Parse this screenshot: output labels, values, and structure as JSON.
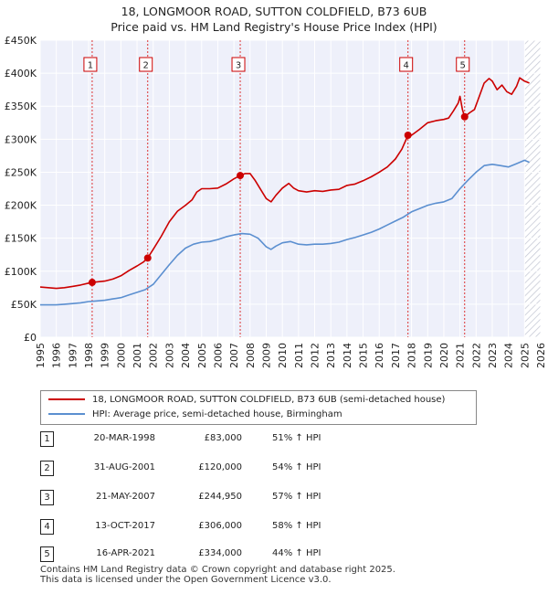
{
  "title_line1": "18, LONGMOOR ROAD, SUTTON COLDFIELD, B73 6UB",
  "title_line2": "Price paid vs. HM Land Registry's House Price Index (HPI)",
  "chart_data": {
    "type": "line",
    "title": "18, LONGMOOR ROAD, SUTTON COLDFIELD, B73 6UB — Price paid vs. HM Land Registry's House Price Index (HPI)",
    "xlabel": "",
    "ylabel": "",
    "xlim": [
      1995,
      2026
    ],
    "ylim": [
      0,
      450000
    ],
    "x_ticks": [
      1995,
      1996,
      1997,
      1998,
      1999,
      2000,
      2001,
      2002,
      2003,
      2004,
      2005,
      2006,
      2007,
      2008,
      2009,
      2010,
      2011,
      2012,
      2013,
      2014,
      2015,
      2016,
      2017,
      2018,
      2019,
      2020,
      2021,
      2022,
      2023,
      2024,
      2025,
      2026
    ],
    "y_ticks": [
      0,
      50000,
      100000,
      150000,
      200000,
      250000,
      300000,
      350000,
      400000,
      450000
    ],
    "y_tick_labels": [
      "£0",
      "£50K",
      "£100K",
      "£150K",
      "£200K",
      "£250K",
      "£300K",
      "£350K",
      "£400K",
      "£450K"
    ],
    "grid": true,
    "series": [
      {
        "name": "18, LONGMOOR ROAD, SUTTON COLDFIELD, B73 6UB (semi-detached house)",
        "color": "#cc0000",
        "points": [
          [
            1995.0,
            76000
          ],
          [
            1995.5,
            75000
          ],
          [
            1996.0,
            74000
          ],
          [
            1996.5,
            75000
          ],
          [
            1997.0,
            77000
          ],
          [
            1997.5,
            79000
          ],
          [
            1998.0,
            82000
          ],
          [
            1998.22,
            83000
          ],
          [
            1998.6,
            84000
          ],
          [
            1999.0,
            85000
          ],
          [
            1999.5,
            88000
          ],
          [
            2000.0,
            93000
          ],
          [
            2000.5,
            101000
          ],
          [
            2001.0,
            108000
          ],
          [
            2001.4,
            114000
          ],
          [
            2001.66,
            120000
          ],
          [
            2002.0,
            133000
          ],
          [
            2002.5,
            153000
          ],
          [
            2003.0,
            175000
          ],
          [
            2003.5,
            191000
          ],
          [
            2004.0,
            200000
          ],
          [
            2004.4,
            208000
          ],
          [
            2004.7,
            220000
          ],
          [
            2005.0,
            225000
          ],
          [
            2005.5,
            225000
          ],
          [
            2006.0,
            226000
          ],
          [
            2006.5,
            232000
          ],
          [
            2007.0,
            240000
          ],
          [
            2007.39,
            244950
          ],
          [
            2007.7,
            248000
          ],
          [
            2008.0,
            248000
          ],
          [
            2008.3,
            238000
          ],
          [
            2008.7,
            222000
          ],
          [
            2009.0,
            210000
          ],
          [
            2009.3,
            205000
          ],
          [
            2009.6,
            215000
          ],
          [
            2010.0,
            226000
          ],
          [
            2010.4,
            233000
          ],
          [
            2010.7,
            226000
          ],
          [
            2011.0,
            222000
          ],
          [
            2011.5,
            220000
          ],
          [
            2012.0,
            222000
          ],
          [
            2012.5,
            221000
          ],
          [
            2013.0,
            223000
          ],
          [
            2013.5,
            224000
          ],
          [
            2014.0,
            230000
          ],
          [
            2014.5,
            232000
          ],
          [
            2015.0,
            237000
          ],
          [
            2015.5,
            243000
          ],
          [
            2016.0,
            250000
          ],
          [
            2016.5,
            258000
          ],
          [
            2017.0,
            270000
          ],
          [
            2017.4,
            285000
          ],
          [
            2017.78,
            306000
          ],
          [
            2018.0,
            306000
          ],
          [
            2018.5,
            315000
          ],
          [
            2019.0,
            325000
          ],
          [
            2019.5,
            328000
          ],
          [
            2020.0,
            330000
          ],
          [
            2020.3,
            332000
          ],
          [
            2020.6,
            343000
          ],
          [
            2020.9,
            355000
          ],
          [
            2021.0,
            365000
          ],
          [
            2021.15,
            345000
          ],
          [
            2021.29,
            334000
          ],
          [
            2021.6,
            340000
          ],
          [
            2021.9,
            345000
          ],
          [
            2022.2,
            365000
          ],
          [
            2022.5,
            385000
          ],
          [
            2022.8,
            392000
          ],
          [
            2023.0,
            388000
          ],
          [
            2023.3,
            375000
          ],
          [
            2023.6,
            382000
          ],
          [
            2023.9,
            372000
          ],
          [
            2024.2,
            368000
          ],
          [
            2024.5,
            380000
          ],
          [
            2024.7,
            393000
          ],
          [
            2025.0,
            388000
          ],
          [
            2025.3,
            385000
          ]
        ]
      },
      {
        "name": "HPI: Average price, semi-detached house, Birmingham",
        "color": "#5b8fd0",
        "points": [
          [
            1995.0,
            49000
          ],
          [
            1995.5,
            49000
          ],
          [
            1996.0,
            49000
          ],
          [
            1996.5,
            50000
          ],
          [
            1997.0,
            51000
          ],
          [
            1997.5,
            52000
          ],
          [
            1998.0,
            54000
          ],
          [
            1998.5,
            55000
          ],
          [
            1999.0,
            56000
          ],
          [
            1999.5,
            58000
          ],
          [
            2000.0,
            60000
          ],
          [
            2000.5,
            64000
          ],
          [
            2001.0,
            68000
          ],
          [
            2001.5,
            72000
          ],
          [
            2002.0,
            80000
          ],
          [
            2002.5,
            95000
          ],
          [
            2003.0,
            110000
          ],
          [
            2003.5,
            124000
          ],
          [
            2004.0,
            135000
          ],
          [
            2004.5,
            141000
          ],
          [
            2005.0,
            144000
          ],
          [
            2005.5,
            145000
          ],
          [
            2006.0,
            148000
          ],
          [
            2006.5,
            152000
          ],
          [
            2007.0,
            155000
          ],
          [
            2007.5,
            157000
          ],
          [
            2008.0,
            156000
          ],
          [
            2008.5,
            150000
          ],
          [
            2009.0,
            137000
          ],
          [
            2009.3,
            133000
          ],
          [
            2009.6,
            138000
          ],
          [
            2010.0,
            143000
          ],
          [
            2010.5,
            145000
          ],
          [
            2011.0,
            141000
          ],
          [
            2011.5,
            140000
          ],
          [
            2012.0,
            141000
          ],
          [
            2012.5,
            141000
          ],
          [
            2013.0,
            142000
          ],
          [
            2013.5,
            144000
          ],
          [
            2014.0,
            148000
          ],
          [
            2014.5,
            151000
          ],
          [
            2015.0,
            155000
          ],
          [
            2015.5,
            159000
          ],
          [
            2016.0,
            164000
          ],
          [
            2016.5,
            170000
          ],
          [
            2017.0,
            176000
          ],
          [
            2017.5,
            182000
          ],
          [
            2018.0,
            190000
          ],
          [
            2018.5,
            195000
          ],
          [
            2019.0,
            200000
          ],
          [
            2019.5,
            203000
          ],
          [
            2020.0,
            205000
          ],
          [
            2020.5,
            210000
          ],
          [
            2021.0,
            225000
          ],
          [
            2021.5,
            238000
          ],
          [
            2022.0,
            250000
          ],
          [
            2022.5,
            260000
          ],
          [
            2023.0,
            262000
          ],
          [
            2023.5,
            260000
          ],
          [
            2024.0,
            258000
          ],
          [
            2024.5,
            263000
          ],
          [
            2025.0,
            268000
          ],
          [
            2025.3,
            265000
          ]
        ]
      }
    ],
    "sales": [
      {
        "label": "1",
        "x": 1998.22,
        "price": 83000
      },
      {
        "label": "2",
        "x": 2001.66,
        "price": 120000
      },
      {
        "label": "3",
        "x": 2007.39,
        "price": 244950
      },
      {
        "label": "4",
        "x": 2017.78,
        "price": 306000
      },
      {
        "label": "5",
        "x": 2021.29,
        "price": 334000
      }
    ],
    "forecast_start": 2025.0
  },
  "legend": {
    "property_label": "18, LONGMOOR ROAD, SUTTON COLDFIELD, B73 6UB (semi-detached house)",
    "hpi_label": "HPI: Average price, semi-detached house, Birmingham",
    "property_color": "#cc0000",
    "hpi_color": "#5b8fd0"
  },
  "sales_table": [
    {
      "num": "1",
      "date": "20-MAR-1998",
      "price": "£83,000",
      "hpi": "51% ↑ HPI"
    },
    {
      "num": "2",
      "date": "31-AUG-2001",
      "price": "£120,000",
      "hpi": "54% ↑ HPI"
    },
    {
      "num": "3",
      "date": "21-MAY-2007",
      "price": "£244,950",
      "hpi": "57% ↑ HPI"
    },
    {
      "num": "4",
      "date": "13-OCT-2017",
      "price": "£306,000",
      "hpi": "58% ↑ HPI"
    },
    {
      "num": "5",
      "date": "16-APR-2021",
      "price": "£334,000",
      "hpi": "44% ↑ HPI"
    }
  ],
  "footer_line1": "Contains HM Land Registry data © Crown copyright and database right 2025.",
  "footer_line2": "This data is licensed under the Open Government Licence v3.0."
}
